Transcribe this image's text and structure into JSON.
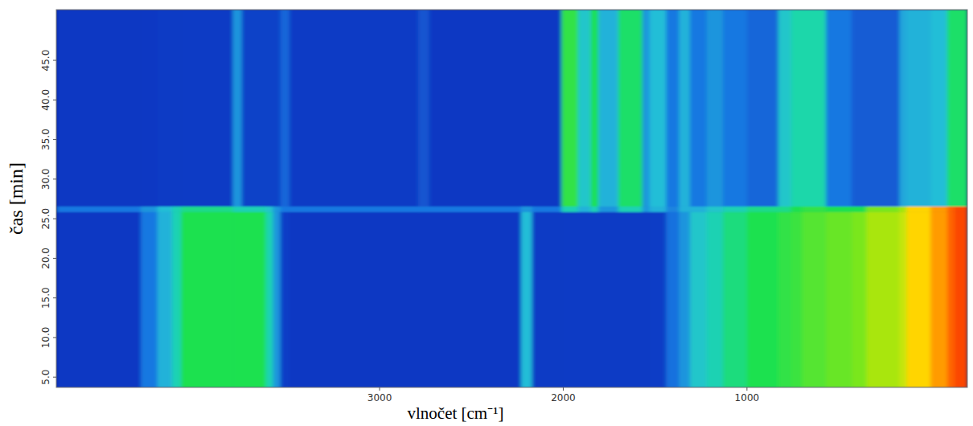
{
  "chart_data": {
    "type": "heatmap",
    "x_label": "vlnočet [cm⁻¹]",
    "y_label": "čas [min]",
    "xlim": [
      4760,
      -200
    ],
    "ylim": [
      3.7,
      51.4
    ],
    "xticks": [
      3000,
      2000,
      1000
    ],
    "yticks": [
      {
        "value": 5,
        "label": "5.0"
      },
      {
        "value": 10,
        "label": "10.0"
      },
      {
        "value": 15,
        "label": "15.0"
      },
      {
        "value": 20,
        "label": "20.0"
      },
      {
        "value": 25,
        "label": "25.0"
      },
      {
        "value": 30,
        "label": "30.0"
      },
      {
        "value": 35,
        "label": "35.0"
      },
      {
        "value": 40,
        "label": "40.0"
      },
      {
        "value": 45,
        "label": "45.0"
      }
    ],
    "zlim": [
      0,
      1
    ],
    "x_edges": [
      4760,
      4300,
      4210,
      4130,
      4080,
      3800,
      3750,
      3620,
      3580,
      3540,
      3490,
      2790,
      2730,
      2230,
      2170,
      2010,
      1920,
      1850,
      1810,
      1700,
      1570,
      1530,
      1440,
      1370,
      1310,
      1220,
      1130,
      1000,
      830,
      760,
      700,
      570,
      430,
      350,
      170,
      130,
      0,
      -90,
      -130,
      -200
    ],
    "y_edges": [
      3.7,
      25.9,
      26.6,
      51.4
    ],
    "cells": [
      [
        0.12,
        0.3,
        0.4,
        0.5,
        0.6,
        0.6,
        0.6,
        0.5,
        0.35,
        0.14,
        0.12,
        0.12,
        0.12,
        0.42,
        0.13,
        0.13,
        0.13,
        0.13,
        0.13,
        0.13,
        0.13,
        0.14,
        0.28,
        0.35,
        0.45,
        0.5,
        0.56,
        0.6,
        0.62,
        0.63,
        0.66,
        0.68,
        0.7,
        0.75,
        0.78,
        0.85,
        0.9,
        0.95,
        0.98
      ],
      [
        0.3,
        0.35,
        0.42,
        0.5,
        0.55,
        0.5,
        0.5,
        0.45,
        0.35,
        0.3,
        0.3,
        0.3,
        0.3,
        0.35,
        0.3,
        0.5,
        0.4,
        0.5,
        0.35,
        0.5,
        0.35,
        0.4,
        0.32,
        0.4,
        0.4,
        0.45,
        0.5,
        0.55,
        0.55,
        0.6,
        0.62,
        0.6,
        0.6,
        0.7,
        0.75,
        0.85,
        0.9,
        0.95,
        0.98
      ],
      [
        0.12,
        0.12,
        0.13,
        0.13,
        0.13,
        0.35,
        0.15,
        0.15,
        0.15,
        0.25,
        0.13,
        0.2,
        0.12,
        0.12,
        0.12,
        0.62,
        0.45,
        0.6,
        0.4,
        0.58,
        0.35,
        0.42,
        0.3,
        0.4,
        0.3,
        0.35,
        0.3,
        0.25,
        0.45,
        0.52,
        0.52,
        0.3,
        0.22,
        0.22,
        0.38,
        0.4,
        0.42,
        0.58,
        0.58
      ]
    ]
  }
}
